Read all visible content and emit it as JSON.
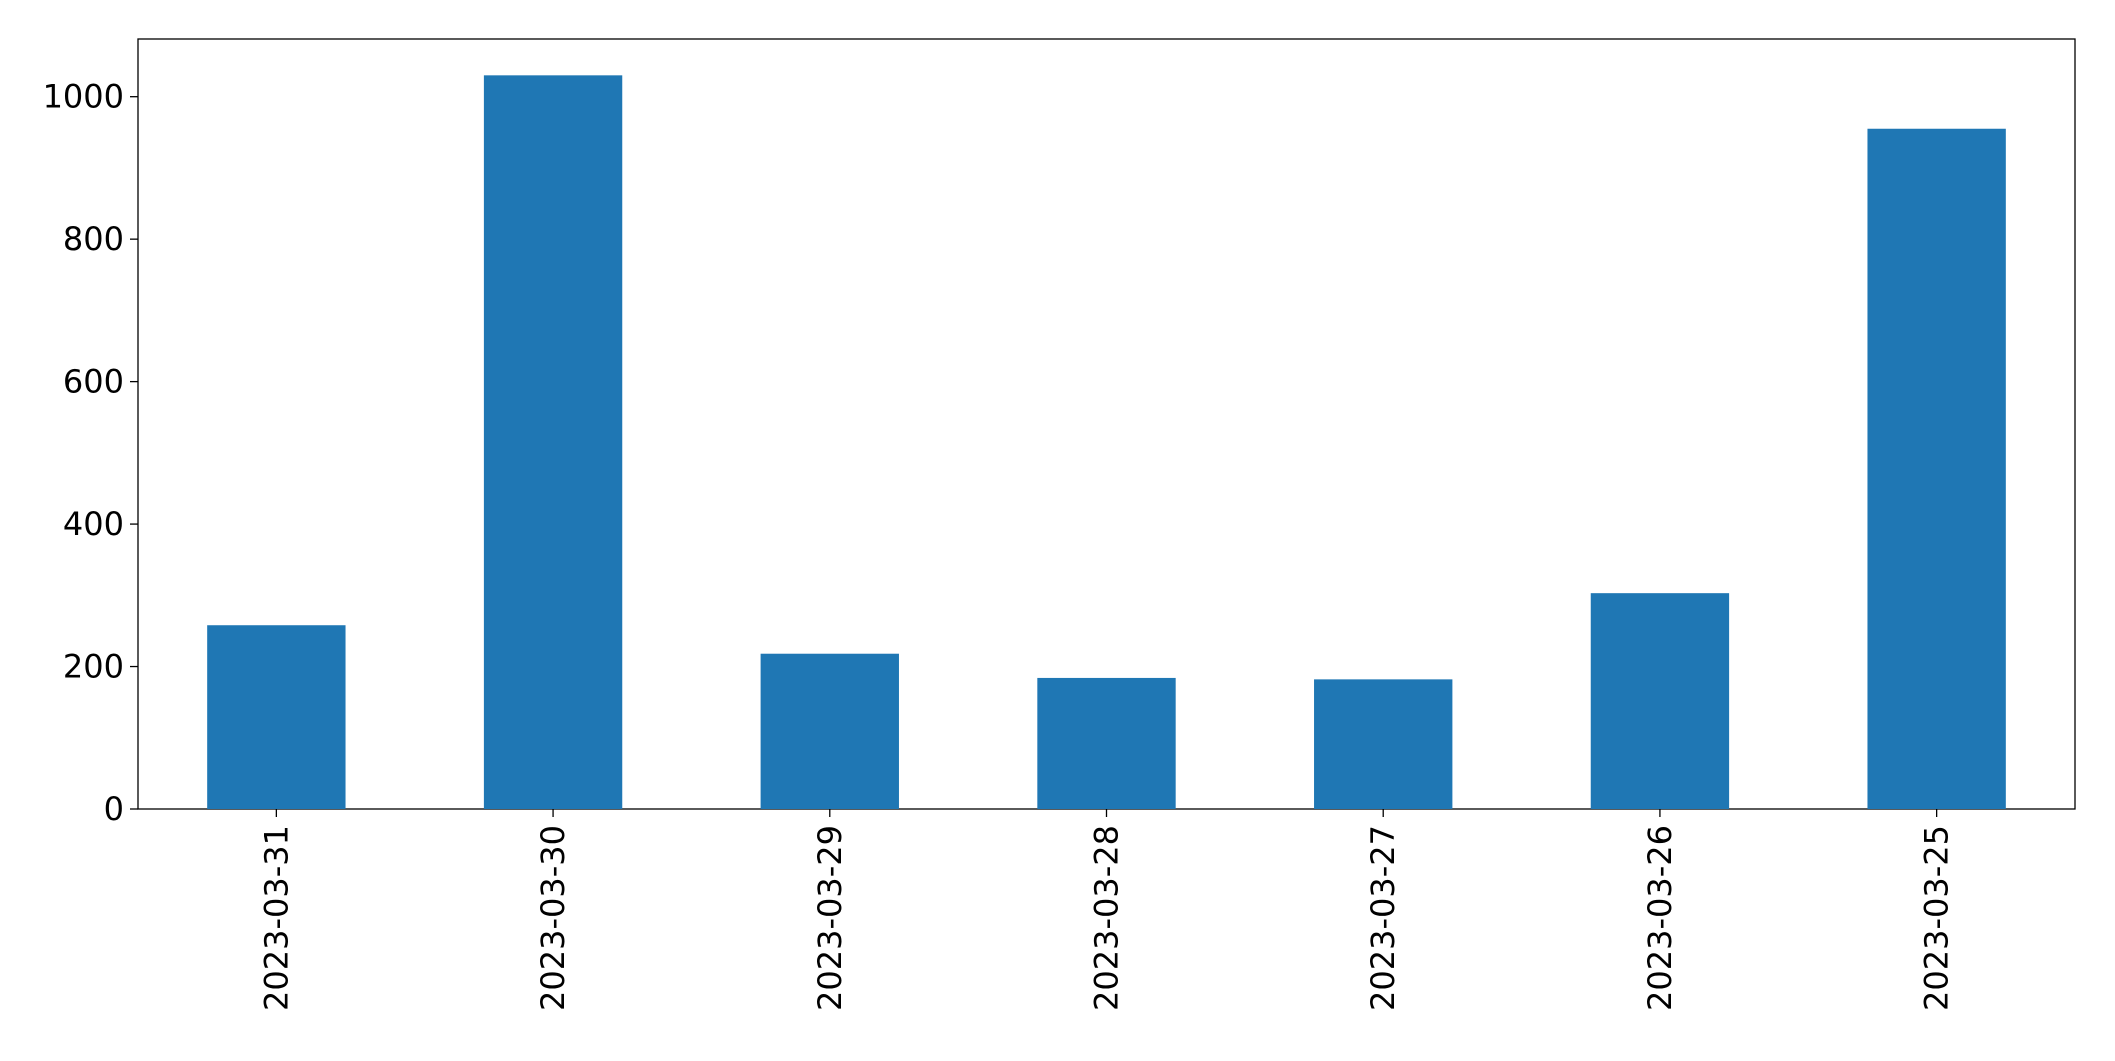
{
  "chart_data": {
    "type": "bar",
    "categories": [
      "2023-03-31",
      "2023-03-30",
      "2023-03-29",
      "2023-03-28",
      "2023-03-27",
      "2023-03-26",
      "2023-03-25"
    ],
    "values": [
      258,
      1030,
      218,
      184,
      182,
      303,
      955
    ],
    "color": "#1f77b4",
    "ylim": [
      0,
      1081
    ],
    "yticks": [
      0,
      200,
      400,
      600,
      800,
      1000
    ],
    "grid": false
  }
}
